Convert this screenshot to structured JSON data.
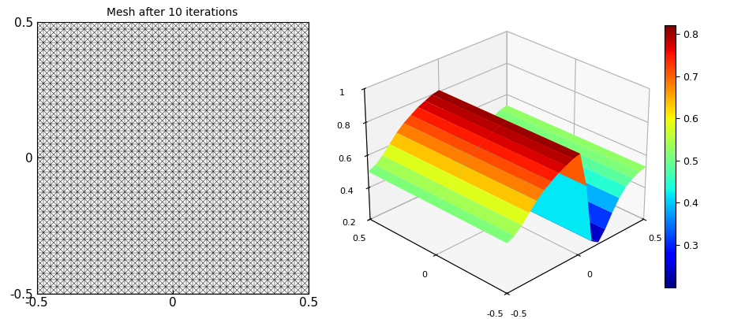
{
  "chart_data": [
    {
      "type": "mesh",
      "title": "Mesh after 10 iterations",
      "xlim": [
        -0.5,
        0.5
      ],
      "ylim": [
        -0.5,
        0.5
      ],
      "xticks": [
        -0.5,
        0,
        0.5
      ],
      "yticks": [
        -0.5,
        0,
        0.5
      ]
    },
    {
      "type": "surface",
      "x": [
        -0.5,
        -0.45,
        -0.4,
        -0.35,
        -0.3,
        -0.25,
        -0.2,
        -0.15,
        -0.1,
        -0.05,
        0,
        0.05,
        0.1,
        0.15,
        0.2,
        0.25,
        0.3,
        0.35,
        0.4,
        0.45,
        0.5
      ],
      "y": [
        -0.5,
        0,
        0.5
      ],
      "z": [
        [
          0.5,
          0.52,
          0.56,
          0.61,
          0.66,
          0.7,
          0.73,
          0.76,
          0.78,
          0.8,
          0.81,
          0.6,
          0.24,
          0.21,
          0.27,
          0.35,
          0.42,
          0.47,
          0.5,
          0.52,
          0.53
        ],
        [
          0.5,
          0.52,
          0.56,
          0.61,
          0.66,
          0.7,
          0.73,
          0.76,
          0.78,
          0.8,
          0.81,
          0.6,
          0.24,
          0.21,
          0.27,
          0.35,
          0.42,
          0.47,
          0.5,
          0.52,
          0.53
        ],
        [
          0.5,
          0.52,
          0.56,
          0.61,
          0.66,
          0.7,
          0.73,
          0.76,
          0.78,
          0.8,
          0.81,
          0.6,
          0.24,
          0.21,
          0.27,
          0.35,
          0.42,
          0.47,
          0.5,
          0.52,
          0.53
        ]
      ],
      "xlim": [
        -0.5,
        0.5
      ],
      "ylim": [
        -0.5,
        0.5
      ],
      "zlim": [
        0.2,
        1
      ],
      "xticks": [
        -0.5,
        0,
        0.5
      ],
      "yticks": [
        -0.5,
        0,
        0.5
      ],
      "zticks": [
        0.2,
        0.4,
        0.6,
        0.8,
        1
      ],
      "colorbar_range": [
        0.2,
        0.82
      ],
      "colorbar_ticks": [
        0.3,
        0.4,
        0.5,
        0.6,
        0.7,
        0.8
      ]
    }
  ]
}
